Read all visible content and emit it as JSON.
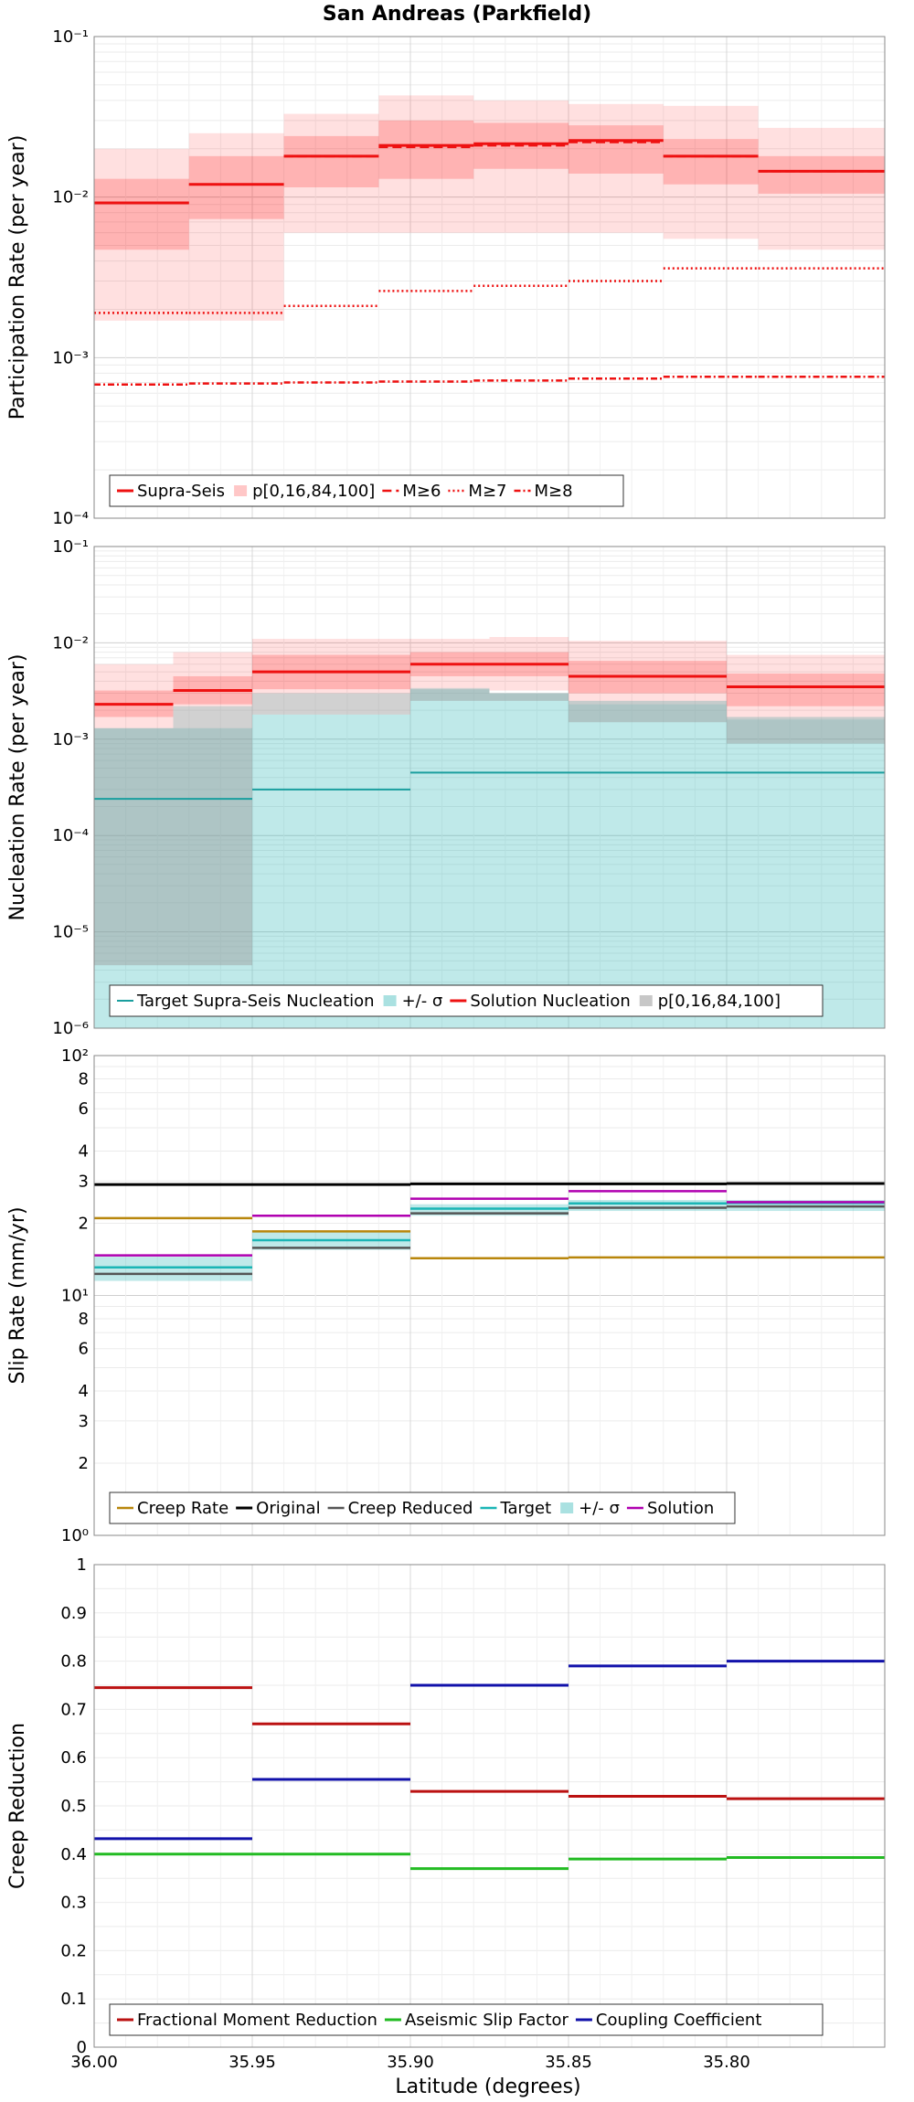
{
  "figure": {
    "title": "San Andreas (Parkfield)",
    "xlabel": "Latitude (degrees)"
  },
  "chart_data": [
    {
      "type": "line",
      "ylabel": "Participation Rate (per year)",
      "yscale": "log",
      "ylim": [
        0.0001,
        0.1
      ],
      "xlim": [
        36.0,
        35.75
      ],
      "x_tick_labels": [
        "36.00",
        "35.95",
        "35.90",
        "35.85",
        "35.80"
      ],
      "legend_position": "lower-left",
      "segments": [
        {
          "x0": 36.0,
          "x1": 35.97
        },
        {
          "x0": 35.97,
          "x1": 35.94
        },
        {
          "x0": 35.94,
          "x1": 35.91
        },
        {
          "x0": 35.91,
          "x1": 35.88
        },
        {
          "x0": 35.88,
          "x1": 35.85
        },
        {
          "x0": 35.85,
          "x1": 35.82
        },
        {
          "x0": 35.82,
          "x1": 35.79
        },
        {
          "x0": 35.79,
          "x1": 35.75
        }
      ],
      "bands": [
        {
          "name": "p[0,16,84,100]",
          "color": "#ff0000",
          "opacity": 0.12,
          "lower": [
            0.0017,
            0.0017,
            0.006,
            0.006,
            0.006,
            0.006,
            0.0055,
            0.0047
          ],
          "upper": [
            0.02,
            0.025,
            0.033,
            0.043,
            0.04,
            0.038,
            0.037,
            0.027
          ]
        },
        {
          "name": "",
          "color": "#ff0000",
          "opacity": 0.2,
          "lower": [
            0.0047,
            0.0073,
            0.0115,
            0.013,
            0.015,
            0.014,
            0.012,
            0.0105
          ],
          "upper": [
            0.013,
            0.018,
            0.024,
            0.03,
            0.029,
            0.028,
            0.023,
            0.018
          ]
        }
      ],
      "series": [
        {
          "name": "Supra-Seis",
          "style": "solid",
          "color": "#ee1111",
          "width": 3,
          "values": [
            0.0092,
            0.012,
            0.018,
            0.021,
            0.0215,
            0.0225,
            0.018,
            0.0145
          ]
        },
        {
          "name": "M≥6",
          "style": "dashed",
          "color": "#ee1111",
          "width": 2.5,
          "values": [
            0.0092,
            0.012,
            0.018,
            0.0205,
            0.021,
            0.022,
            0.018,
            0.0145
          ]
        },
        {
          "name": "M≥7",
          "style": "dotted",
          "color": "#ee1111",
          "width": 2.5,
          "values": [
            0.0019,
            0.0019,
            0.0021,
            0.0026,
            0.0028,
            0.003,
            0.0036,
            0.0036
          ]
        },
        {
          "name": "M≥8",
          "style": "dashdot",
          "color": "#ee1111",
          "width": 2.5,
          "values": [
            0.00068,
            0.00069,
            0.0007,
            0.00071,
            0.00072,
            0.00074,
            0.00076,
            0.00076
          ]
        }
      ]
    },
    {
      "type": "line",
      "ylabel": "Nucleation Rate (per year)",
      "yscale": "log",
      "ylim": [
        1e-06,
        0.1
      ],
      "xlim": [
        36.0,
        35.75
      ],
      "x_tick_labels": [
        "36.00",
        "35.95",
        "35.90",
        "35.85",
        "35.80"
      ],
      "legend_position": "lower-center",
      "segments": [
        {
          "x0": 36.0,
          "x1": 35.975
        },
        {
          "x0": 35.975,
          "x1": 35.95
        },
        {
          "x0": 35.95,
          "x1": 35.9
        },
        {
          "x0": 35.9,
          "x1": 35.875
        },
        {
          "x0": 35.875,
          "x1": 35.85
        },
        {
          "x0": 35.85,
          "x1": 35.8
        },
        {
          "x0": 35.8,
          "x1": 35.75
        }
      ],
      "bands": [
        {
          "name": "+/- σ",
          "color": "#2ab5b5",
          "opacity": 0.3,
          "lower": [
            1e-06,
            1e-06,
            1e-06,
            1e-06,
            1e-06,
            1e-06,
            1e-06
          ],
          "upper": [
            0.0013,
            0.0013,
            0.0018,
            0.0033,
            0.003,
            0.0025,
            0.0017
          ]
        },
        {
          "name": "p[0,16,84,100]",
          "color": "#999999",
          "opacity": 0.45,
          "lower": [
            4.5e-06,
            4.5e-06,
            0.0018,
            0.0025,
            0.0025,
            0.0015,
            0.0009
          ],
          "upper": [
            0.0013,
            0.0022,
            0.003,
            0.0034,
            0.003,
            0.0023,
            0.0016
          ]
        },
        {
          "name": "",
          "color": "#ff0000",
          "opacity": 0.12,
          "lower": [
            0.0013,
            0.0022,
            0.003,
            0.0034,
            0.0032,
            0.0023,
            0.0016
          ],
          "upper": [
            0.006,
            0.008,
            0.011,
            0.011,
            0.0115,
            0.0105,
            0.0075
          ]
        },
        {
          "name": "",
          "color": "#ff0000",
          "opacity": 0.2,
          "lower": [
            0.0017,
            0.0023,
            0.0033,
            0.0045,
            0.0045,
            0.003,
            0.0022
          ],
          "upper": [
            0.0032,
            0.0045,
            0.0075,
            0.008,
            0.008,
            0.0065,
            0.0048
          ]
        }
      ],
      "series": [
        {
          "name": "Target Supra-Seis Nucleation",
          "style": "solid",
          "color": "#1a9e9e",
          "width": 2,
          "values": [
            0.00024,
            0.00024,
            0.0003,
            0.00045,
            0.00045,
            0.00045,
            0.00045
          ]
        },
        {
          "name": "Solution Nucleation",
          "style": "solid",
          "color": "#ee1111",
          "width": 3,
          "values": [
            0.0023,
            0.0032,
            0.005,
            0.006,
            0.006,
            0.0045,
            0.0035
          ]
        }
      ]
    },
    {
      "type": "line",
      "ylabel": "Slip Rate (mm/yr)",
      "yscale": "log",
      "ylim": [
        1,
        100
      ],
      "xlim": [
        36.0,
        35.75
      ],
      "x_tick_labels": [
        "36.00",
        "35.95",
        "35.90",
        "35.85",
        "35.80"
      ],
      "y_tick_labels": [
        "10⁰",
        "2",
        "3",
        "4",
        "6",
        "8",
        "10¹",
        "2",
        "3",
        "4",
        "6",
        "8",
        "10²"
      ],
      "legend_position": "lower-left",
      "segments": [
        {
          "x0": 36.0,
          "x1": 35.95
        },
        {
          "x0": 35.95,
          "x1": 35.9
        },
        {
          "x0": 35.9,
          "x1": 35.85
        },
        {
          "x0": 35.85,
          "x1": 35.8
        },
        {
          "x0": 35.8,
          "x1": 35.75
        }
      ],
      "bands": [
        {
          "name": "+/- σ",
          "color": "#2ab5b5",
          "opacity": 0.3,
          "lower": [
            11.5,
            15.5,
            21.5,
            22.5,
            22.5
          ],
          "upper": [
            14.5,
            18.5,
            24,
            25,
            25
          ]
        }
      ],
      "series": [
        {
          "name": "Creep Rate",
          "style": "solid",
          "color": "#b8860b",
          "width": 2.5,
          "values": [
            21,
            18.5,
            14.3,
            14.4,
            14.4
          ]
        },
        {
          "name": "Original",
          "style": "solid",
          "color": "#000000",
          "width": 3,
          "values": [
            29,
            29,
            29.2,
            29.2,
            29.3
          ]
        },
        {
          "name": "Creep Reduced",
          "style": "solid",
          "color": "#555555",
          "width": 2.5,
          "values": [
            12.3,
            15.8,
            22,
            23.2,
            23.5
          ]
        },
        {
          "name": "Target",
          "style": "solid",
          "color": "#1ab5b5",
          "width": 2.5,
          "values": [
            13.1,
            17,
            23,
            24.2,
            24.3
          ]
        },
        {
          "name": "Solution",
          "style": "solid",
          "color": "#b000b0",
          "width": 2.5,
          "values": [
            14.7,
            21.5,
            25.3,
            27.2,
            24.5
          ]
        }
      ]
    },
    {
      "type": "line",
      "ylabel": "Creep Reduction",
      "yscale": "linear",
      "ylim": [
        0,
        1
      ],
      "xlim": [
        36.0,
        35.75
      ],
      "x_tick_labels": [
        "36.00",
        "35.95",
        "35.90",
        "35.85",
        "35.80"
      ],
      "y_tick_labels": [
        "0",
        "0.1",
        "0.2",
        "0.3",
        "0.4",
        "0.5",
        "0.6",
        "0.7",
        "0.8",
        "0.9",
        "1"
      ],
      "legend_position": "lower-center",
      "segments": [
        {
          "x0": 36.0,
          "x1": 35.95
        },
        {
          "x0": 35.95,
          "x1": 35.9
        },
        {
          "x0": 35.9,
          "x1": 35.85
        },
        {
          "x0": 35.85,
          "x1": 35.8
        },
        {
          "x0": 35.8,
          "x1": 35.75
        }
      ],
      "bands": [],
      "series": [
        {
          "name": "Fractional Moment Reduction",
          "style": "solid",
          "color": "#bb1111",
          "width": 3,
          "values": [
            0.745,
            0.67,
            0.53,
            0.52,
            0.515
          ]
        },
        {
          "name": "Aseismic Slip Factor",
          "style": "solid",
          "color": "#22bb22",
          "width": 3,
          "values": [
            0.4,
            0.4,
            0.37,
            0.39,
            0.393
          ]
        },
        {
          "name": "Coupling Coefficient",
          "style": "solid",
          "color": "#1111aa",
          "width": 3,
          "values": [
            0.432,
            0.555,
            0.75,
            0.79,
            0.8
          ]
        }
      ]
    }
  ]
}
